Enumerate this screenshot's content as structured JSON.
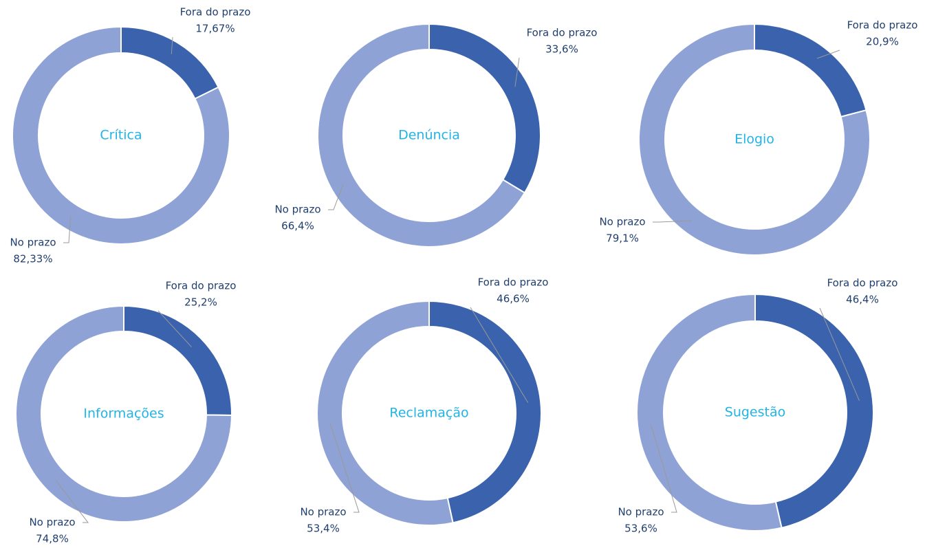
{
  "chart_data": [
    {
      "type": "pie",
      "title": "Crítica",
      "categories": [
        "Fora do prazo",
        "No prazo"
      ],
      "values": [
        17.67,
        82.33
      ],
      "value_labels": [
        "17,67%",
        "82,33%"
      ],
      "colors": [
        "#3a62ad",
        "#8fa2d6"
      ]
    },
    {
      "type": "pie",
      "title": "Denúncia",
      "categories": [
        "Fora do prazo",
        "No prazo"
      ],
      "values": [
        33.6,
        66.4
      ],
      "value_labels": [
        "33,6%",
        "66,4%"
      ],
      "colors": [
        "#3a62ad",
        "#8fa2d6"
      ]
    },
    {
      "type": "pie",
      "title": "Elogio",
      "categories": [
        "Fora do prazo",
        "No prazo"
      ],
      "values": [
        20.9,
        79.1
      ],
      "value_labels": [
        "20,9%",
        "79,1%"
      ],
      "colors": [
        "#3a62ad",
        "#8fa2d6"
      ]
    },
    {
      "type": "pie",
      "title": "Informações",
      "categories": [
        "Fora do prazo",
        "No prazo"
      ],
      "values": [
        25.2,
        74.8
      ],
      "value_labels": [
        "25,2%",
        "74,8%"
      ],
      "colors": [
        "#3a62ad",
        "#8fa2d6"
      ]
    },
    {
      "type": "pie",
      "title": "Reclamação",
      "categories": [
        "Fora do prazo",
        "No prazo"
      ],
      "values": [
        46.6,
        53.4
      ],
      "value_labels": [
        "46,6%",
        "53,4%"
      ],
      "colors": [
        "#3a62ad",
        "#8fa2d6"
      ]
    },
    {
      "type": "pie",
      "title": "Sugestão",
      "categories": [
        "Fora do prazo",
        "No prazo"
      ],
      "values": [
        46.4,
        53.6
      ],
      "value_labels": [
        "46,4%",
        "53,6%"
      ],
      "colors": [
        "#3a62ad",
        "#8fa2d6"
      ]
    }
  ]
}
